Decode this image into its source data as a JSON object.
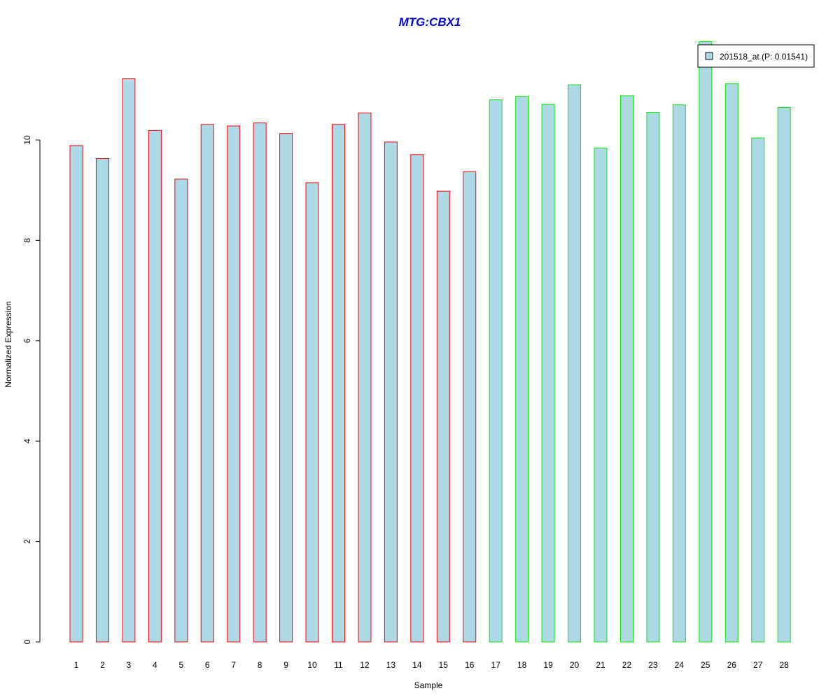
{
  "chart_data": {
    "type": "bar",
    "title": "MTG:CBX1",
    "xlabel": "Sample",
    "ylabel": "Normalized Expression",
    "categories": [
      "1",
      "2",
      "3",
      "4",
      "5",
      "6",
      "7",
      "8",
      "9",
      "10",
      "11",
      "12",
      "13",
      "14",
      "15",
      "16",
      "17",
      "18",
      "19",
      "20",
      "21",
      "22",
      "23",
      "24",
      "25",
      "26",
      "27",
      "28"
    ],
    "values": [
      9.89,
      9.63,
      11.22,
      10.19,
      9.22,
      10.31,
      10.28,
      10.34,
      10.13,
      9.15,
      10.31,
      10.54,
      9.96,
      9.71,
      8.98,
      9.37,
      10.8,
      10.87,
      10.71,
      11.1,
      9.84,
      10.88,
      10.55,
      10.7,
      11.96,
      11.12,
      10.04,
      10.65
    ],
    "yticks": [
      0,
      2,
      4,
      6,
      8,
      10
    ],
    "ylim": [
      0,
      12
    ],
    "series": [
      {
        "name": "201518_at (P: 0.01541)",
        "values": [
          9.89,
          9.63,
          11.22,
          10.19,
          9.22,
          10.31,
          10.28,
          10.34,
          10.13,
          9.15,
          10.31,
          10.54,
          9.96,
          9.71,
          8.98,
          9.37,
          10.8,
          10.87,
          10.71,
          11.1,
          9.84,
          10.88,
          10.55,
          10.7,
          11.96,
          11.12,
          10.04,
          10.65
        ]
      }
    ],
    "group_split_after": 16,
    "legend_position": "top-right",
    "grid": false,
    "colors": {
      "title": "#0000cc",
      "bar_fill": "#add8e6",
      "border_group1": "#ff0000",
      "border_group2": "#00ee00",
      "axis": "#000000"
    }
  }
}
